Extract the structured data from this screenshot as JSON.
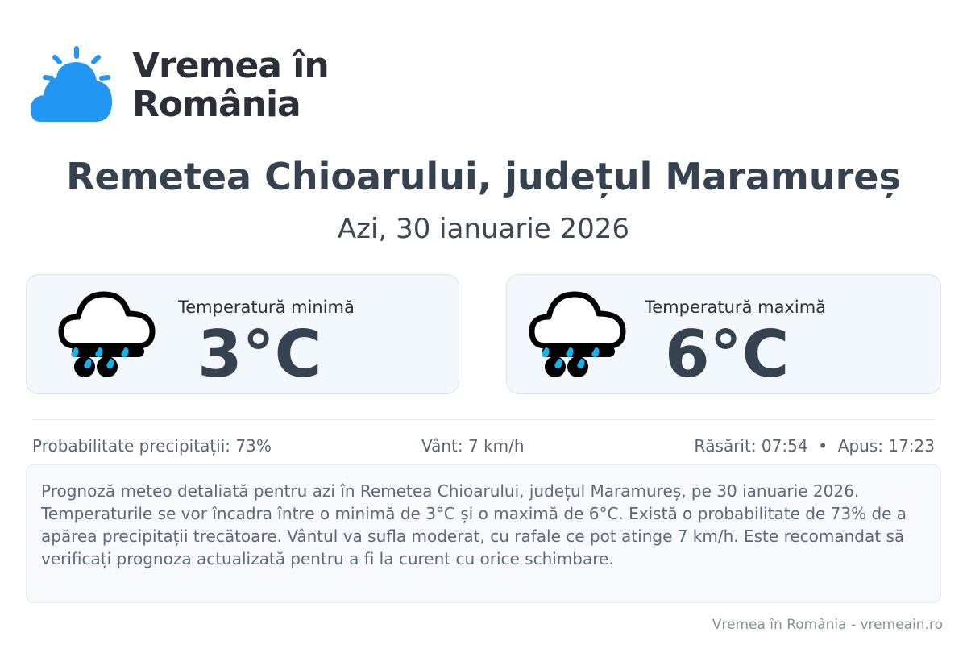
{
  "brand": {
    "name_line1": "Vremea în",
    "name_line2": "România",
    "logo_icon": "sun-cloud-icon",
    "logo_color": "#2196f3"
  },
  "header": {
    "title": "Remetea Chioarului, județul Maramureș",
    "date": "Azi, 30 ianuarie 2026"
  },
  "cards": [
    {
      "label": "Temperatură minimă",
      "value": "3°C",
      "icon": "rain-cloud-icon"
    },
    {
      "label": "Temperatură maximă",
      "value": "6°C",
      "icon": "rain-cloud-icon"
    }
  ],
  "stats": {
    "precip": "Probabilitate precipitații: 73%",
    "wind": "Vânt: 7 km/h",
    "sun": "Răsărit: 07:54  •  Apus: 17:23"
  },
  "description": "Prognoză meteo detaliată pentru azi în Remetea Chioarului, județul Maramureș, pe 30 ianuarie 2026. Temperaturile se vor încadra între o minimă de 3°C și o maximă de 6°C. Există o probabilitate de 73% de a apărea precipitații trecătoare. Vântul va sufla moderat, cu rafale ce pot atinge 7 km/h. Este recomandat să verificați prognoza actualizată pentru a fi la curent cu orice schimbare.",
  "footer": "Vremea în România - vremeain.ro"
}
